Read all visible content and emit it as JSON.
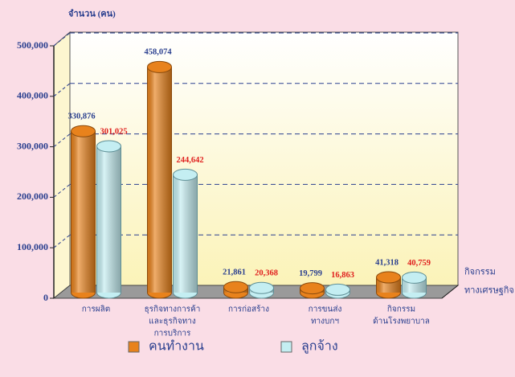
{
  "chart_data": {
    "type": "bar3d",
    "y_axis_label": "จำนวน (คน)",
    "x_axis_label": [
      "กิจกรรม",
      "ทางเศรษฐกิจ"
    ],
    "categories": [
      [
        "การผลิต"
      ],
      [
        "ธุรกิจทางการค้า",
        "และธุรกิจทาง",
        "การบริการ"
      ],
      [
        "การก่อสร้าง"
      ],
      [
        "การขนส่ง",
        "ทางบกฯ"
      ],
      [
        "กิจกรรม",
        "ด้านโรงพยาบาล"
      ]
    ],
    "series": [
      {
        "name": "คนทำงาน",
        "color": "#e8821c",
        "label_color": "#2a3f8f",
        "values": [
          330876,
          458074,
          21861,
          19799,
          41318
        ],
        "value_labels": [
          "330,876",
          "458,074",
          "21,861",
          "19,799",
          "41,318"
        ]
      },
      {
        "name": "ลูกจ้าง",
        "color": "#c4eef2",
        "label_color": "#e0201e",
        "values": [
          301025,
          244642,
          20368,
          16863,
          40759
        ],
        "value_labels": [
          "301,025",
          "244,642",
          "20,368",
          "16,863",
          "40,759"
        ]
      }
    ],
    "ylim": [
      0,
      500000
    ],
    "yticks": [
      {
        "value": 0,
        "label": "0"
      },
      {
        "value": 100000,
        "label": "100,000"
      },
      {
        "value": 200000,
        "label": "200,000"
      },
      {
        "value": 300000,
        "label": "300,000"
      },
      {
        "value": 400000,
        "label": "400,000"
      },
      {
        "value": 500000,
        "label": "500,000"
      }
    ],
    "grid": true
  }
}
